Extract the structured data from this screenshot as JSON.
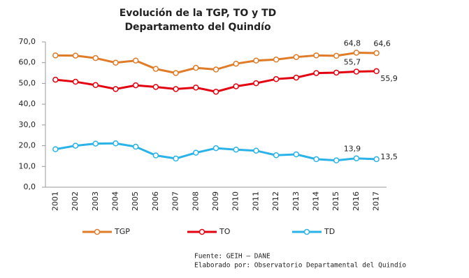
{
  "chart_data": {
    "type": "line",
    "title": "Evolución de la TGP, TO y TD",
    "subtitle": "Departamento del Quindío",
    "categories": [
      "2001",
      "2002",
      "2003",
      "2004",
      "2005",
      "2006",
      "2007",
      "2008",
      "2009",
      "2010",
      "2011",
      "2012",
      "2013",
      "2014",
      "2015",
      "2016",
      "2017"
    ],
    "series": [
      {
        "name": "TGP",
        "color": "#e07b28",
        "values": [
          63.5,
          63.4,
          62.2,
          60.0,
          61.0,
          57.0,
          55.0,
          57.5,
          56.7,
          59.5,
          61.0,
          61.5,
          62.7,
          63.5,
          63.3,
          64.8,
          64.6
        ],
        "value_labels": [
          null,
          null,
          null,
          null,
          null,
          null,
          null,
          null,
          null,
          null,
          null,
          null,
          null,
          null,
          null,
          "64,8",
          "64,6"
        ]
      },
      {
        "name": "TO",
        "color": "#e3000f",
        "values": [
          51.8,
          50.8,
          49.2,
          47.3,
          49.1,
          48.3,
          47.3,
          48.0,
          46.0,
          48.6,
          50.1,
          52.1,
          52.8,
          55.0,
          55.2,
          55.7,
          55.9
        ],
        "value_labels": [
          null,
          null,
          null,
          null,
          null,
          null,
          null,
          null,
          null,
          null,
          null,
          null,
          null,
          null,
          null,
          "55,7",
          "55,9"
        ]
      },
      {
        "name": "TD",
        "color": "#2ab3e8",
        "values": [
          18.3,
          20.0,
          21.0,
          21.1,
          19.5,
          15.3,
          13.8,
          16.6,
          18.8,
          18.1,
          17.6,
          15.4,
          15.8,
          13.5,
          12.9,
          13.9,
          13.5
        ],
        "value_labels": [
          null,
          null,
          null,
          null,
          null,
          null,
          null,
          null,
          null,
          null,
          null,
          null,
          null,
          null,
          null,
          "13,9",
          "13,5"
        ]
      }
    ],
    "ylim": [
      0,
      70
    ],
    "yticks": [
      {
        "value": 0,
        "label": "0,0"
      },
      {
        "value": 10,
        "label": "10,0"
      },
      {
        "value": 20,
        "label": "20,0"
      },
      {
        "value": 30,
        "label": "30,0"
      },
      {
        "value": 40,
        "label": "40,0"
      },
      {
        "value": 50,
        "label": "50,0"
      },
      {
        "value": 60,
        "label": "60,0"
      },
      {
        "value": 70,
        "label": "70,0"
      }
    ],
    "source": "Fuente: GEIH – DANE",
    "credit": "Elaborado por: Observatorio Departamental del Quindío"
  }
}
